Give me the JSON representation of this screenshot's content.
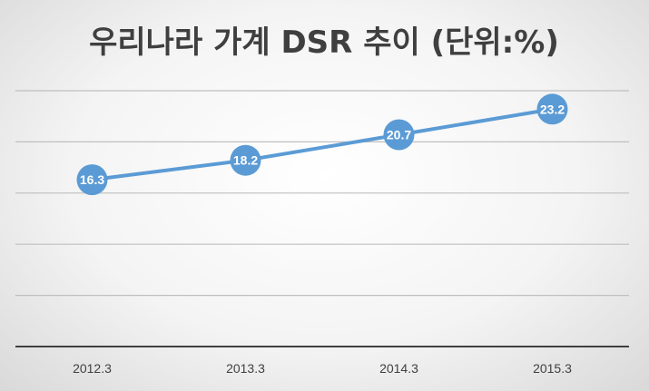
{
  "chart_data": {
    "type": "line",
    "title": "우리나라 가계 DSR 추이 (단위:%)",
    "categories": [
      "2012.3",
      "2013.3",
      "2014.3",
      "2015.3"
    ],
    "series": [
      {
        "values": [
          16.3,
          18.2,
          20.7,
          23.2
        ],
        "labels": [
          "16.3",
          "18.2",
          "20.7",
          "23.2"
        ]
      }
    ],
    "ylim": [
      0,
      25
    ],
    "grid": true,
    "legend": "none",
    "colors": {
      "line": "#5b9bd5",
      "marker": "#5b9bd5",
      "grid": "#bfbfbf",
      "axis": "#404040",
      "label": "#ffffff"
    }
  }
}
